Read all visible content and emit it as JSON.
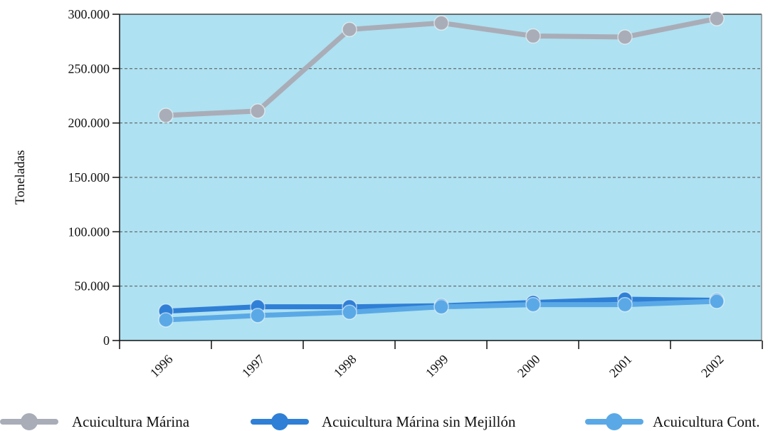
{
  "chart_data": {
    "type": "line",
    "title": "",
    "xlabel": "",
    "ylabel": "Toneladas",
    "categories": [
      "1996",
      "1997",
      "1998",
      "1999",
      "2000",
      "2001",
      "2002"
    ],
    "ylim": [
      0,
      300000
    ],
    "yticks": [
      0,
      50000,
      100000,
      150000,
      200000,
      250000,
      300000
    ],
    "ytick_labels": [
      "0",
      "50.000",
      "100.000",
      "150.000",
      "200.000",
      "250.000",
      "300.000"
    ],
    "grid": true,
    "legend_position": "bottom",
    "series": [
      {
        "name": "Acuicultura Márina",
        "color": "#a9adb8",
        "values": [
          207000,
          211000,
          286000,
          292000,
          280000,
          279000,
          296000
        ]
      },
      {
        "name": "Acuicultura Márina sin Mejillón",
        "color": "#2f7fd6",
        "values": [
          27000,
          31000,
          31000,
          32000,
          35000,
          38000,
          37000
        ]
      },
      {
        "name": "Acuicultura Cont.",
        "color": "#5aa9e6",
        "values": [
          19000,
          23000,
          26000,
          31000,
          33000,
          33000,
          36000
        ]
      }
    ],
    "plot_background": "#aee1f1"
  }
}
